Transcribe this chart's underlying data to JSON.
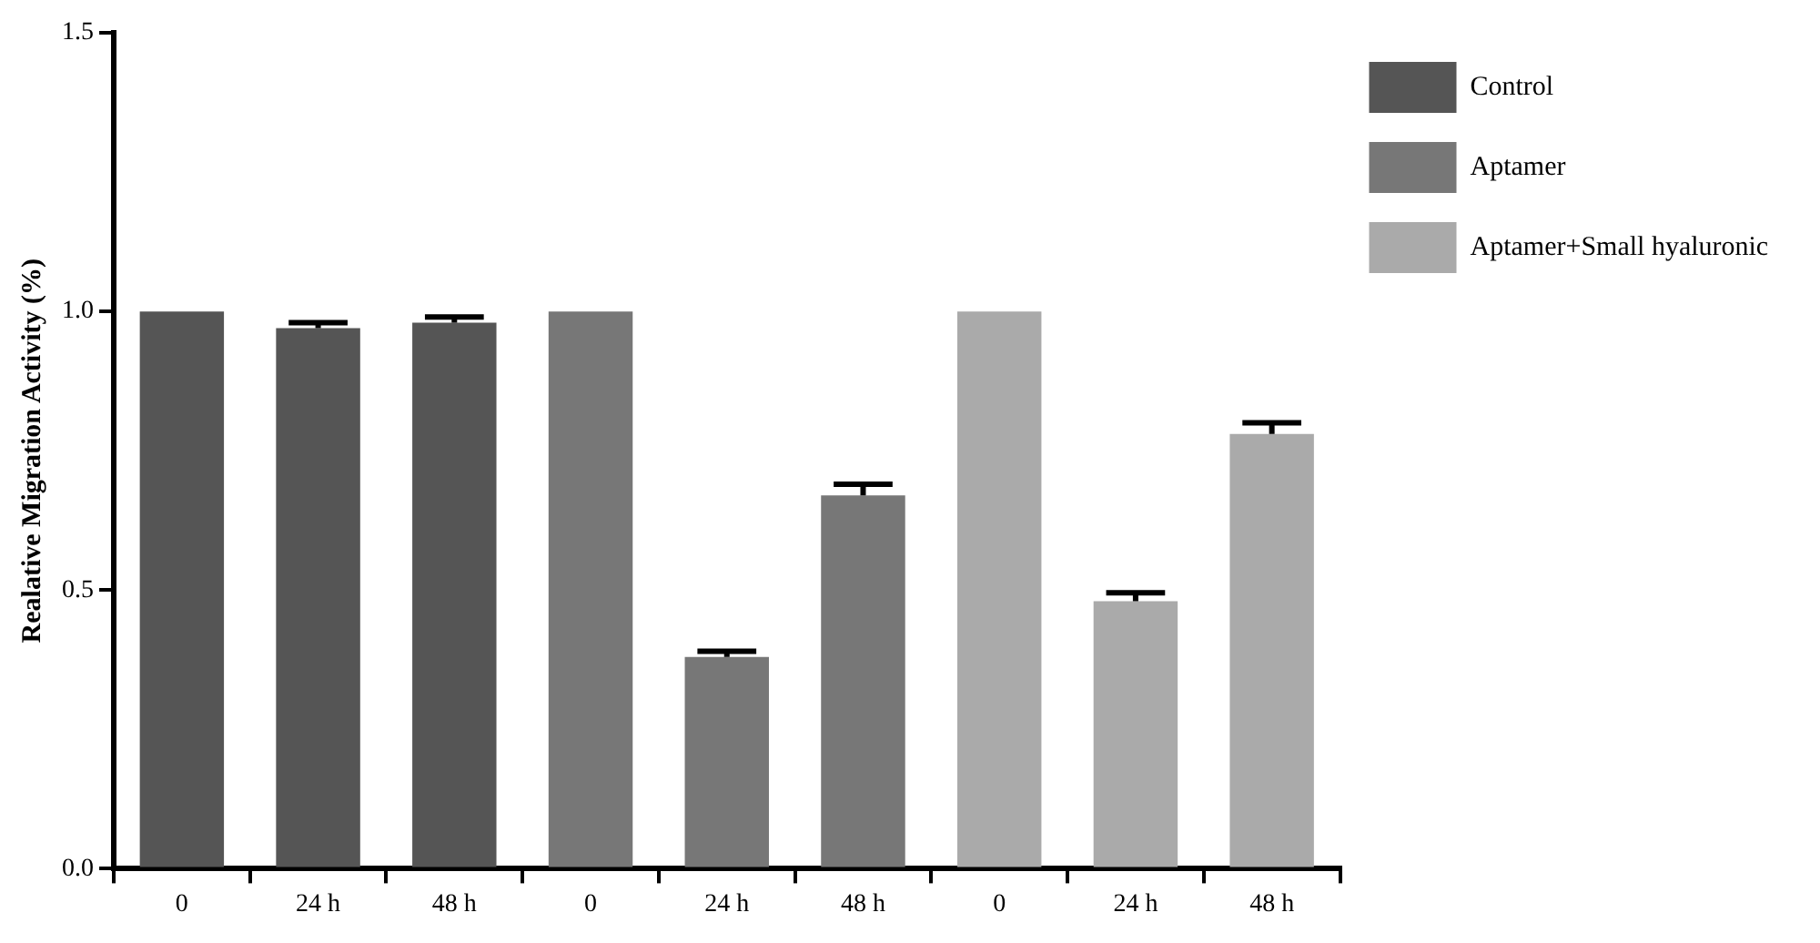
{
  "chart_data": {
    "type": "bar",
    "ylabel": "Realative Migration Activity (%)",
    "categories": [
      "0",
      "24 h",
      "48 h",
      "0",
      "24 h",
      "48 h",
      "0",
      "24 h",
      "48 h"
    ],
    "series": [
      {
        "name": "Control",
        "color": "#555555",
        "values": [
          1.0,
          0.97,
          0.98,
          null,
          null,
          null,
          null,
          null,
          null
        ],
        "errors": [
          null,
          [
            0.97,
            0.98
          ],
          [
            0.98,
            0.99
          ],
          null,
          null,
          null,
          null,
          null,
          null
        ]
      },
      {
        "name": "Aptamer",
        "color": "#777777",
        "values": [
          null,
          null,
          null,
          1.0,
          0.38,
          0.67,
          null,
          null,
          null
        ],
        "errors": [
          null,
          null,
          null,
          null,
          [
            0.38,
            0.39
          ],
          [
            0.67,
            0.69
          ],
          null,
          null,
          null
        ]
      },
      {
        "name": "Aptamer+Small hyaluronic",
        "color": "#aaaaaa",
        "values": [
          null,
          null,
          null,
          null,
          null,
          null,
          1.0,
          0.48,
          0.78
        ],
        "errors": [
          null,
          null,
          null,
          null,
          null,
          null,
          null,
          [
            0.48,
            0.495
          ],
          [
            0.78,
            0.8
          ]
        ]
      }
    ],
    "ylim": [
      0,
      1.5
    ],
    "yticks": [
      {
        "value": 0,
        "label": "0.0"
      },
      {
        "value": 0.5,
        "label": "0.5"
      },
      {
        "value": 1,
        "label": "1.0"
      },
      {
        "value": 1.5,
        "label": "1.5"
      }
    ],
    "grid": false,
    "legend": "top right"
  }
}
